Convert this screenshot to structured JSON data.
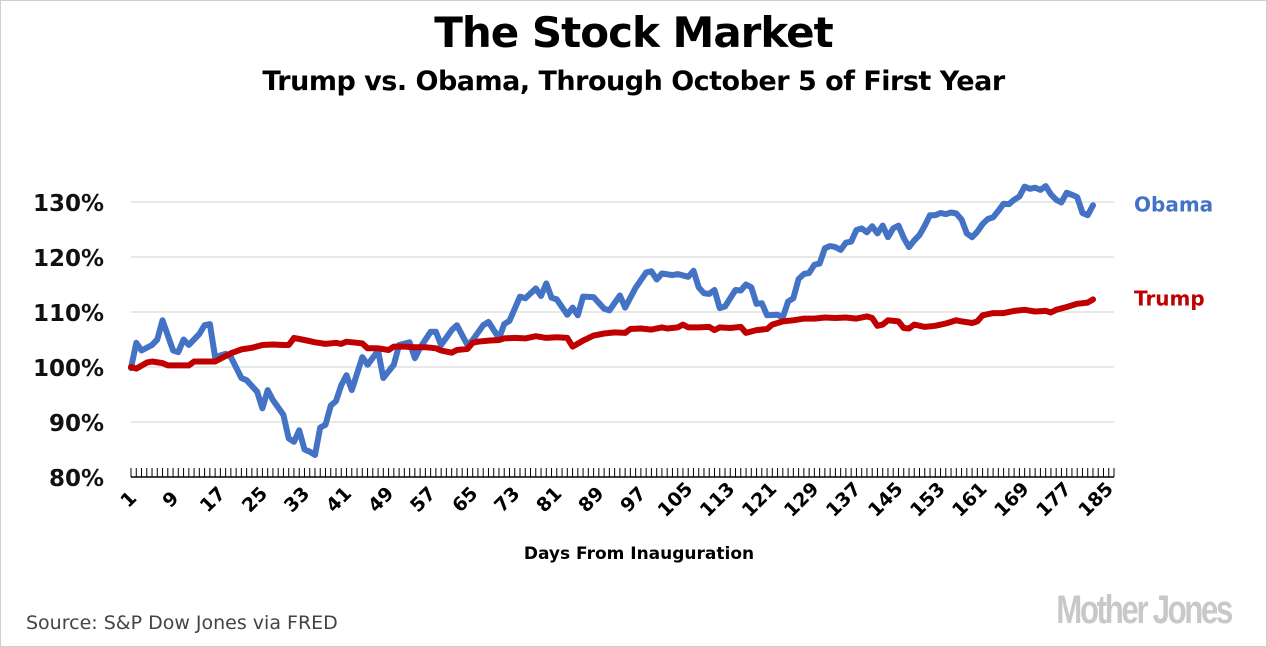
{
  "header": {
    "title": "The Stock Market",
    "subtitle": "Trump vs. Obama, Through October 5 of First Year"
  },
  "footer": {
    "source": "Source: S&P Dow Jones via FRED",
    "brand": "Mother Jones"
  },
  "colors": {
    "obama": "#4472c4",
    "trump": "#c00000",
    "grid": "#d9d9d9",
    "axis": "#000000"
  },
  "chart_data": {
    "type": "line",
    "title": "The Stock Market",
    "subtitle": "Trump vs. Obama, Through October 5 of First Year",
    "xlabel": "Days From Inauguration",
    "ylabel": "",
    "xlim": [
      1,
      188
    ],
    "ylim": [
      80,
      130
    ],
    "grid": true,
    "legend": "right (inline labels at line ends)",
    "y_ticks": [
      {
        "value": 80,
        "label": "80%"
      },
      {
        "value": 90,
        "label": "90%"
      },
      {
        "value": 100,
        "label": "100%"
      },
      {
        "value": 110,
        "label": "110%"
      },
      {
        "value": 120,
        "label": "120%"
      },
      {
        "value": 130,
        "label": "130%"
      }
    ],
    "x_tick_labels": [
      1,
      9,
      17,
      25,
      33,
      41,
      49,
      57,
      65,
      73,
      81,
      89,
      97,
      105,
      113,
      121,
      129,
      137,
      145,
      153,
      161,
      169,
      177,
      185
    ],
    "series": [
      {
        "name": "Obama",
        "color": "#4472c4",
        "points": [
          [
            1,
            99.8
          ],
          [
            2,
            104.4
          ],
          [
            3,
            103
          ],
          [
            5,
            104
          ],
          [
            6,
            105
          ],
          [
            7,
            108.5
          ],
          [
            9,
            103
          ],
          [
            10,
            102.7
          ],
          [
            11,
            105
          ],
          [
            12,
            104
          ],
          [
            14,
            106
          ],
          [
            15,
            107.6
          ],
          [
            16,
            107.8
          ],
          [
            17,
            101.8
          ],
          [
            19,
            102.4
          ],
          [
            20,
            101.8
          ],
          [
            22,
            98
          ],
          [
            23,
            97.6
          ],
          [
            25,
            95.5
          ],
          [
            26,
            92.5
          ],
          [
            27,
            95.8
          ],
          [
            28,
            94
          ],
          [
            30,
            91.3
          ],
          [
            31,
            87
          ],
          [
            32,
            86.4
          ],
          [
            33,
            88.5
          ],
          [
            34,
            85
          ],
          [
            35,
            84.6
          ],
          [
            36,
            84
          ],
          [
            37,
            89
          ],
          [
            38,
            89.5
          ],
          [
            39,
            93
          ],
          [
            40,
            93.8
          ],
          [
            41,
            96.7
          ],
          [
            42,
            98.5
          ],
          [
            43,
            95.8
          ],
          [
            45,
            101.8
          ],
          [
            46,
            100.4
          ],
          [
            48,
            103
          ],
          [
            49,
            98
          ],
          [
            51,
            100.4
          ],
          [
            52,
            104
          ],
          [
            54,
            104.5
          ],
          [
            55,
            101.6
          ],
          [
            56,
            103.5
          ],
          [
            58,
            106.4
          ],
          [
            59,
            106.4
          ],
          [
            60,
            104
          ],
          [
            62,
            106.7
          ],
          [
            63,
            107.6
          ],
          [
            65,
            104
          ],
          [
            66,
            104.9
          ],
          [
            68,
            107.6
          ],
          [
            69,
            108.2
          ],
          [
            71,
            105.2
          ],
          [
            72,
            107.8
          ],
          [
            73,
            108.4
          ],
          [
            75,
            112.8
          ],
          [
            76,
            112.5
          ],
          [
            78,
            114.3
          ],
          [
            79,
            112.9
          ],
          [
            80,
            115.2
          ],
          [
            81,
            112.6
          ],
          [
            82,
            112.3
          ],
          [
            84,
            109.5
          ],
          [
            85,
            110.8
          ],
          [
            86,
            109.4
          ],
          [
            87,
            112.8
          ],
          [
            89,
            112.7
          ],
          [
            91,
            110.6
          ],
          [
            92,
            110.3
          ],
          [
            94,
            113
          ],
          [
            95,
            110.8
          ],
          [
            97,
            114.4
          ],
          [
            99,
            117.2
          ],
          [
            100,
            117.4
          ],
          [
            101,
            115.9
          ],
          [
            102,
            117
          ],
          [
            104,
            116.7
          ],
          [
            105,
            116.9
          ],
          [
            107,
            116.4
          ],
          [
            108,
            117.5
          ],
          [
            109,
            114.5
          ],
          [
            110,
            113.4
          ],
          [
            111,
            113.3
          ],
          [
            112,
            114
          ],
          [
            113,
            110.7
          ],
          [
            114,
            111
          ],
          [
            116,
            114
          ],
          [
            117,
            113.9
          ],
          [
            118,
            115
          ],
          [
            119,
            114.5
          ],
          [
            120,
            111.5
          ],
          [
            121,
            111.6
          ],
          [
            122,
            109.4
          ],
          [
            124,
            109.5
          ],
          [
            125,
            109
          ],
          [
            126,
            111.9
          ],
          [
            127,
            112.5
          ],
          [
            128,
            116
          ],
          [
            129,
            116.9
          ],
          [
            130,
            117.1
          ],
          [
            131,
            118.6
          ],
          [
            132,
            118.8
          ],
          [
            133,
            121.6
          ],
          [
            134,
            122
          ],
          [
            135,
            121.8
          ],
          [
            136,
            121.3
          ],
          [
            137,
            122.6
          ],
          [
            138,
            122.8
          ],
          [
            139,
            124.9
          ],
          [
            140,
            125.2
          ],
          [
            141,
            124.5
          ],
          [
            142,
            125.6
          ],
          [
            143,
            124.3
          ],
          [
            144,
            125.7
          ],
          [
            145,
            123.6
          ],
          [
            146,
            125.2
          ],
          [
            147,
            125.7
          ],
          [
            148,
            123.5
          ],
          [
            149,
            121.8
          ],
          [
            150,
            123
          ],
          [
            151,
            124
          ],
          [
            152,
            125.7
          ],
          [
            153,
            127.6
          ],
          [
            154,
            127.6
          ],
          [
            155,
            128
          ],
          [
            156,
            127.8
          ],
          [
            157,
            128.1
          ],
          [
            158,
            127.9
          ],
          [
            159,
            126.8
          ],
          [
            160,
            124.3
          ],
          [
            161,
            123.6
          ],
          [
            162,
            124.6
          ],
          [
            163,
            126
          ],
          [
            164,
            126.9
          ],
          [
            165,
            127.2
          ],
          [
            166,
            128.4
          ],
          [
            167,
            129.7
          ],
          [
            168,
            129.6
          ],
          [
            169,
            130.4
          ],
          [
            170,
            131
          ],
          [
            171,
            132.8
          ],
          [
            172,
            132.4
          ],
          [
            173,
            132.6
          ],
          [
            174,
            132.2
          ],
          [
            175,
            132.9
          ],
          [
            176,
            131.4
          ],
          [
            177,
            130.4
          ],
          [
            178,
            129.9
          ],
          [
            179,
            131.7
          ],
          [
            180,
            131.3
          ],
          [
            181,
            130.9
          ],
          [
            182,
            128
          ],
          [
            183,
            127.6
          ],
          [
            184,
            129.4
          ]
        ]
      },
      {
        "name": "Trump",
        "color": "#c00000",
        "points": [
          [
            1,
            100
          ],
          [
            2,
            99.7
          ],
          [
            4,
            100.8
          ],
          [
            5,
            101
          ],
          [
            7,
            100.7
          ],
          [
            8,
            100.3
          ],
          [
            10,
            100.3
          ],
          [
            12,
            100.3
          ],
          [
            13,
            101
          ],
          [
            15,
            101
          ],
          [
            17,
            101
          ],
          [
            19,
            102
          ],
          [
            20,
            102.5
          ],
          [
            22,
            103.2
          ],
          [
            24,
            103.5
          ],
          [
            26,
            104
          ],
          [
            28,
            104.1
          ],
          [
            30,
            104
          ],
          [
            31,
            104
          ],
          [
            32,
            105.3
          ],
          [
            34,
            104.9
          ],
          [
            36,
            104.5
          ],
          [
            38,
            104.2
          ],
          [
            40,
            104.4
          ],
          [
            41,
            104.2
          ],
          [
            42,
            104.6
          ],
          [
            44,
            104.4
          ],
          [
            45,
            104.3
          ],
          [
            46,
            103.4
          ],
          [
            48,
            103.4
          ],
          [
            50,
            103.1
          ],
          [
            51,
            103.7
          ],
          [
            53,
            103.7
          ],
          [
            55,
            103.6
          ],
          [
            57,
            103.6
          ],
          [
            59,
            103.4
          ],
          [
            60,
            103
          ],
          [
            62,
            102.6
          ],
          [
            63,
            103.1
          ],
          [
            65,
            103.3
          ],
          [
            66,
            104.4
          ],
          [
            67,
            104.6
          ],
          [
            69,
            104.8
          ],
          [
            71,
            104.9
          ],
          [
            72,
            105.2
          ],
          [
            74,
            105.3
          ],
          [
            76,
            105.2
          ],
          [
            78,
            105.6
          ],
          [
            80,
            105.3
          ],
          [
            82,
            105.4
          ],
          [
            84,
            105.3
          ],
          [
            85,
            103.7
          ],
          [
            87,
            104.8
          ],
          [
            89,
            105.7
          ],
          [
            91,
            106.1
          ],
          [
            93,
            106.3
          ],
          [
            95,
            106.2
          ],
          [
            96,
            106.9
          ],
          [
            98,
            107
          ],
          [
            100,
            106.8
          ],
          [
            102,
            107.2
          ],
          [
            103,
            107
          ],
          [
            105,
            107.2
          ],
          [
            106,
            107.7
          ],
          [
            107,
            107.2
          ],
          [
            109,
            107.2
          ],
          [
            111,
            107.3
          ],
          [
            112,
            106.7
          ],
          [
            113,
            107.2
          ],
          [
            115,
            107.1
          ],
          [
            117,
            107.3
          ],
          [
            118,
            106.2
          ],
          [
            120,
            106.7
          ],
          [
            122,
            106.9
          ],
          [
            123,
            107.7
          ],
          [
            125,
            108.3
          ],
          [
            127,
            108.5
          ],
          [
            129,
            108.8
          ],
          [
            131,
            108.8
          ],
          [
            133,
            109
          ],
          [
            135,
            108.9
          ],
          [
            137,
            109
          ],
          [
            139,
            108.8
          ],
          [
            141,
            109.2
          ],
          [
            142,
            108.9
          ],
          [
            143,
            107.5
          ],
          [
            144,
            107.7
          ],
          [
            145,
            108.5
          ],
          [
            147,
            108.3
          ],
          [
            148,
            107.1
          ],
          [
            149,
            107
          ],
          [
            150,
            107.7
          ],
          [
            152,
            107.3
          ],
          [
            154,
            107.5
          ],
          [
            156,
            107.9
          ],
          [
            158,
            108.5
          ],
          [
            159,
            108.3
          ],
          [
            161,
            108
          ],
          [
            162,
            108.3
          ],
          [
            163,
            109.4
          ],
          [
            165,
            109.8
          ],
          [
            167,
            109.8
          ],
          [
            169,
            110.2
          ],
          [
            171,
            110.4
          ],
          [
            173,
            110.1
          ],
          [
            175,
            110.2
          ],
          [
            176,
            109.9
          ],
          [
            177,
            110.4
          ],
          [
            179,
            110.9
          ],
          [
            181,
            111.5
          ],
          [
            183,
            111.7
          ],
          [
            184,
            112.3
          ]
        ]
      }
    ]
  }
}
